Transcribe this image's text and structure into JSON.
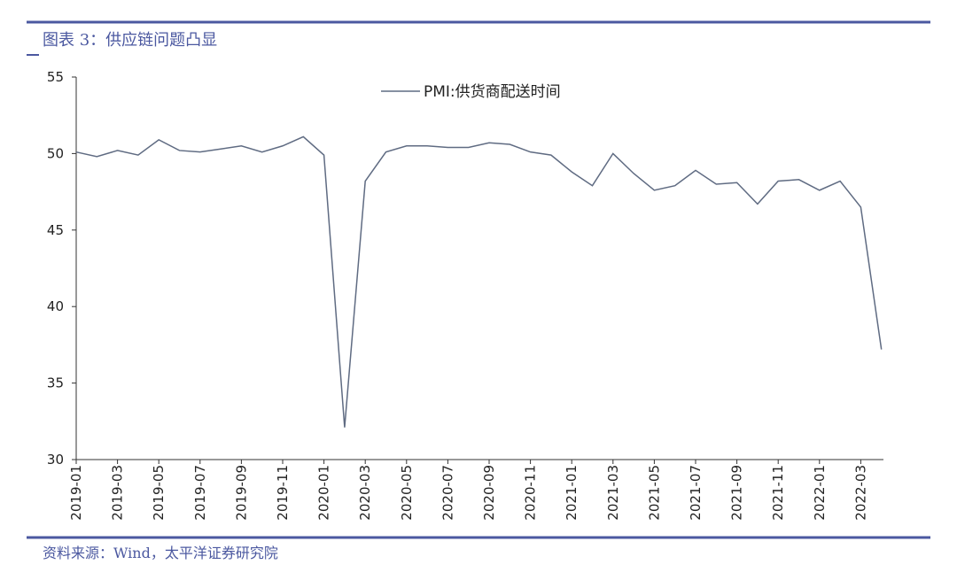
{
  "chart_data": {
    "type": "line",
    "title": "图表 3：供应链问题凸显",
    "source": "资料来源：Wind，太平洋证券研究院",
    "categories": [
      "2019-01",
      null,
      "2019-03",
      null,
      "2019-05",
      null,
      "2019-07",
      null,
      "2019-09",
      null,
      "2019-11",
      null,
      "2020-01",
      null,
      "2020-03",
      null,
      "2020-05",
      null,
      "2020-07",
      null,
      "2020-09",
      null,
      "2020-11",
      null,
      "2021-01",
      null,
      "2021-03",
      null,
      "2021-05",
      null,
      "2021-07",
      null,
      "2021-09",
      null,
      "2021-11",
      null,
      "2022-01",
      null,
      "2022-03",
      null
    ],
    "series": [
      {
        "name": "PMI:供货商配送时间",
        "color": "#5f6b82",
        "values": [
          50.1,
          49.8,
          50.2,
          49.9,
          50.9,
          50.2,
          50.1,
          50.3,
          50.5,
          50.1,
          50.5,
          51.1,
          49.9,
          32.1,
          48.2,
          50.1,
          50.5,
          50.5,
          50.4,
          50.4,
          50.7,
          50.6,
          50.1,
          49.9,
          48.8,
          47.9,
          50.0,
          48.7,
          47.6,
          47.9,
          48.9,
          48.0,
          48.1,
          46.7,
          48.2,
          48.3,
          47.6,
          48.2,
          46.5,
          37.2
        ]
      }
    ],
    "ylim": [
      30,
      55
    ],
    "yticks": [
      30,
      35,
      40,
      45,
      50,
      55
    ],
    "grid": false,
    "legend": "top"
  }
}
